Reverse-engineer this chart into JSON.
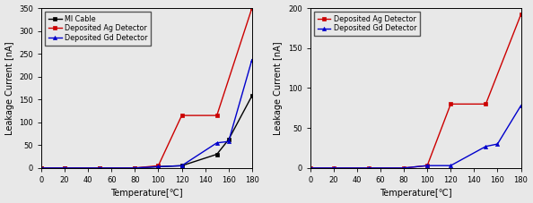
{
  "left": {
    "xlabel": "Temperature[℃]",
    "ylabel": "Leakage Current [nA]",
    "ylim": [
      0,
      350
    ],
    "yticks": [
      0,
      50,
      100,
      150,
      200,
      250,
      300,
      350
    ],
    "xlim": [
      0,
      180
    ],
    "xticks": [
      0,
      20,
      40,
      60,
      80,
      100,
      120,
      140,
      160,
      180
    ],
    "series": [
      {
        "label": "MI Cable",
        "color": "#000000",
        "marker": "s",
        "markersize": 3,
        "linewidth": 1.0,
        "x": [
          0,
          20,
          50,
          80,
          100,
          120,
          150,
          160,
          180
        ],
        "y": [
          0,
          0,
          0,
          0,
          3,
          5,
          30,
          62,
          158
        ]
      },
      {
        "label": "Deposited Ag Detector",
        "color": "#cc0000",
        "marker": "s",
        "markersize": 3,
        "linewidth": 1.0,
        "x": [
          0,
          20,
          50,
          80,
          100,
          120,
          150,
          180
        ],
        "y": [
          0,
          0,
          0,
          0,
          5,
          115,
          115,
          350
        ]
      },
      {
        "label": "Deposited Gd Detector",
        "color": "#0000cc",
        "marker": "^",
        "markersize": 3,
        "linewidth": 1.0,
        "x": [
          0,
          20,
          50,
          80,
          100,
          120,
          150,
          160,
          180
        ],
        "y": [
          0,
          0,
          0,
          0,
          3,
          5,
          55,
          58,
          237
        ]
      }
    ]
  },
  "right": {
    "xlabel": "Temperature[℃]",
    "ylabel": "Leakage Current [nA]",
    "ylim": [
      0,
      200
    ],
    "yticks": [
      0,
      50,
      100,
      150,
      200
    ],
    "xlim": [
      0,
      180
    ],
    "xticks": [
      0,
      20,
      40,
      60,
      80,
      100,
      120,
      140,
      160,
      180
    ],
    "series": [
      {
        "label": "Deposited Ag Detector",
        "color": "#cc0000",
        "marker": "s",
        "markersize": 3,
        "linewidth": 1.0,
        "x": [
          0,
          20,
          50,
          80,
          100,
          120,
          150,
          180
        ],
        "y": [
          0,
          0,
          0,
          0,
          3,
          80,
          80,
          192
        ]
      },
      {
        "label": "Deposited Gd Detector",
        "color": "#0000cc",
        "marker": "^",
        "markersize": 3,
        "linewidth": 1.0,
        "x": [
          0,
          20,
          50,
          80,
          100,
          120,
          150,
          160,
          180
        ],
        "y": [
          0,
          0,
          0,
          0,
          3,
          3,
          27,
          30,
          78
        ]
      }
    ]
  },
  "legend_fontsize": 5.8,
  "axis_fontsize": 7,
  "tick_fontsize": 6,
  "bg_color": "#e8e8e8"
}
